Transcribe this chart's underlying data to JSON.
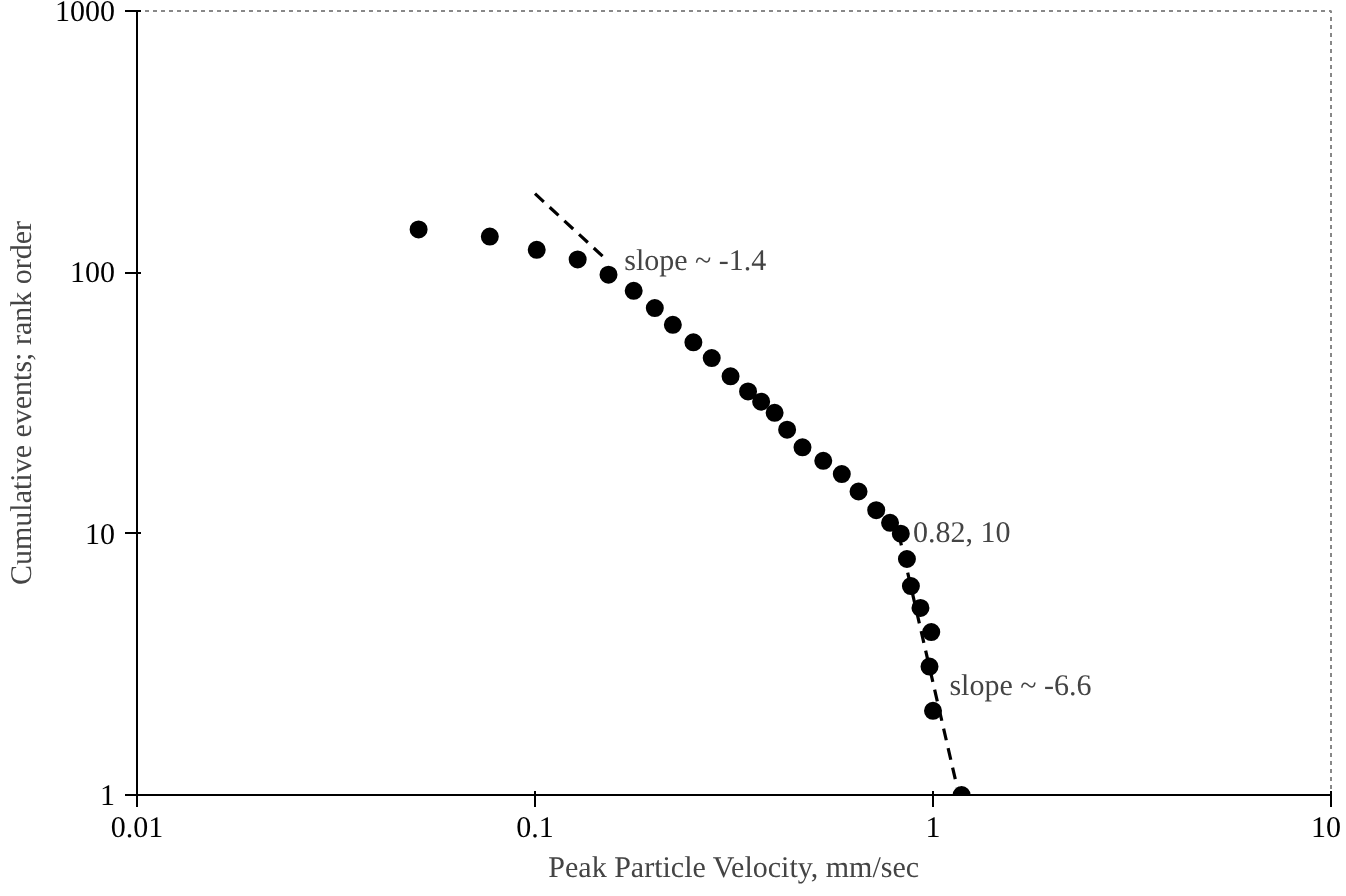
{
  "chart_data": {
    "type": "scatter",
    "xlabel": "Peak Particle Velocity, mm/sec",
    "ylabel": "Cumulative events; rank order",
    "log": "xy",
    "xlim": [
      0.01,
      10
    ],
    "ylim": [
      1,
      1000
    ],
    "xticks": [
      0.01,
      0.1,
      1,
      10
    ],
    "yticks": [
      1,
      10,
      100,
      1000
    ],
    "grid": false,
    "series": [
      {
        "marker": "circle",
        "color": "#000000",
        "x": [
          0.051,
          0.077,
          0.101,
          0.128,
          0.153,
          0.177,
          0.2,
          0.222,
          0.25,
          0.278,
          0.31,
          0.343,
          0.37,
          0.4,
          0.43,
          0.47,
          0.53,
          0.59,
          0.65,
          0.72,
          0.78,
          0.83,
          0.86,
          0.88,
          0.93,
          0.99,
          0.98,
          1.0,
          1.18
        ],
        "values": [
          146,
          137,
          122,
          112,
          98,
          85,
          73,
          63,
          54,
          47,
          40,
          35,
          32,
          29,
          25,
          21.4,
          19,
          16.9,
          14.5,
          12.3,
          11,
          10,
          8,
          6.3,
          5.2,
          4.2,
          3.1,
          2.1,
          1
        ]
      },
      {
        "type": "line",
        "color": "#000000",
        "line_style": "dashed",
        "x": [
          0.1,
          0.15
        ],
        "values": [
          200,
          113
        ]
      },
      {
        "type": "line",
        "color": "#000000",
        "line_style": "dashed",
        "x": [
          0.82,
          1.15
        ],
        "values": [
          10,
          1.07
        ]
      }
    ],
    "annotations": [
      {
        "text": "slope ~ -1.4",
        "x": 0.16,
        "y": 110
      },
      {
        "text": "0.82, 10",
        "x": 0.85,
        "y": 10
      },
      {
        "text": "slope ~ -6.6",
        "x": 1.05,
        "y": 2.6
      }
    ]
  }
}
